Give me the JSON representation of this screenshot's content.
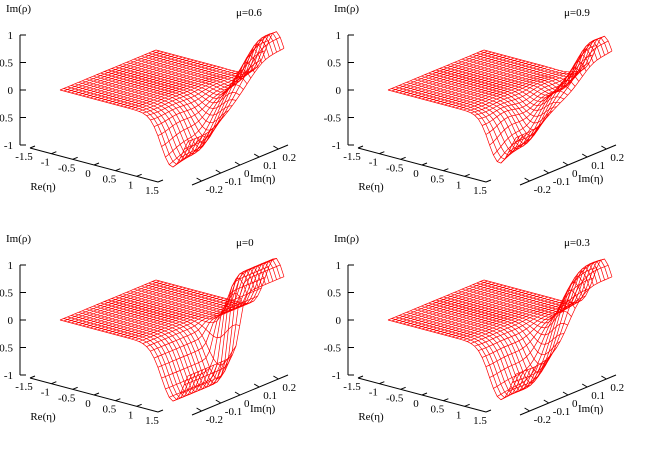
{
  "chart_data": [
    {
      "type": "surface3d",
      "title": "μ=0.6",
      "zlabel": "Im(ρ)",
      "xlabel": "Re(η)",
      "ylabel": "Im(η)",
      "x_ticks": [
        "-1.5",
        "-1",
        "-0.5",
        "0",
        "0.5",
        "1",
        "1.5"
      ],
      "y_ticks": [
        "-0.2",
        "-0.1",
        "0",
        "0.1",
        "0.2"
      ],
      "z_ticks": [
        "1",
        "0.5",
        "0",
        "-0.5",
        "-1"
      ],
      "xlim": [
        -1.5,
        1.5
      ],
      "ylim": [
        -0.25,
        0.25
      ],
      "zlim": [
        -1,
        1
      ],
      "surface_color": "#ff0000",
      "mu": 0.6,
      "roughness": 0.5
    },
    {
      "type": "surface3d",
      "title": "μ=0.9",
      "zlabel": "Im(ρ)",
      "xlabel": "Re(η)",
      "ylabel": "Im(η)",
      "x_ticks": [
        "-1.5",
        "-1",
        "-0.5",
        "0",
        "0.5",
        "1",
        "1.5"
      ],
      "y_ticks": [
        "-0.2",
        "-0.1",
        "0",
        "0.1",
        "0.2"
      ],
      "z_ticks": [
        "1",
        "0.5",
        "0",
        "-0.5",
        "-1"
      ],
      "xlim": [
        -1.5,
        1.5
      ],
      "ylim": [
        -0.25,
        0.25
      ],
      "zlim": [
        -1,
        1
      ],
      "surface_color": "#ff0000",
      "mu": 0.9,
      "roughness": 0.8
    },
    {
      "type": "surface3d",
      "title": "μ=0",
      "zlabel": "Im(ρ)",
      "xlabel": "Re(η)",
      "ylabel": "Im(η)",
      "x_ticks": [
        "-1.5",
        "-1",
        "-0.5",
        "0",
        "0.5",
        "1",
        "1.5"
      ],
      "y_ticks": [
        "-0.2",
        "-0.1",
        "0",
        "0.1",
        "0.2"
      ],
      "z_ticks": [
        "1",
        "0.5",
        "0",
        "-0.5",
        "-1"
      ],
      "xlim": [
        -1.5,
        1.5
      ],
      "ylim": [
        -0.25,
        0.25
      ],
      "zlim": [
        -1,
        1
      ],
      "surface_color": "#ff0000",
      "mu": 0.0,
      "roughness": 0.0
    },
    {
      "type": "surface3d",
      "title": "μ=0.3",
      "zlabel": "Im(ρ)",
      "xlabel": "Re(η)",
      "ylabel": "Im(η)",
      "x_ticks": [
        "-1.5",
        "-1",
        "-0.5",
        "0",
        "0.5",
        "1",
        "1.5"
      ],
      "y_ticks": [
        "-0.2",
        "-0.1",
        "0",
        "0.1",
        "0.2"
      ],
      "z_ticks": [
        "1",
        "0.5",
        "0",
        "-0.5",
        "-1"
      ],
      "xlim": [
        -1.5,
        1.5
      ],
      "ylim": [
        -0.25,
        0.25
      ],
      "zlim": [
        -1,
        1
      ],
      "surface_color": "#ff0000",
      "mu": 0.3,
      "roughness": 0.25
    }
  ]
}
